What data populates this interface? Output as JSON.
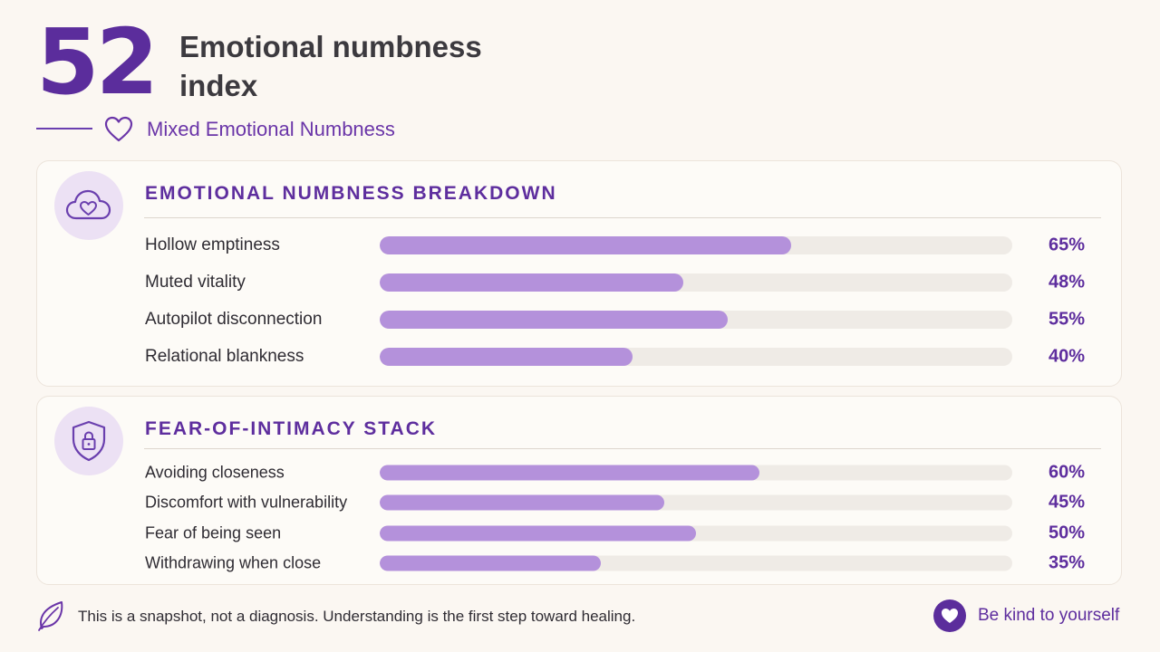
{
  "header": {
    "score": "52",
    "title": "Emotional numbness index",
    "category": "Mixed Emotional Numbness",
    "category_icon": "heart-outline-icon"
  },
  "sections": [
    {
      "heading": "EMOTIONAL NUMBNESS BREAKDOWN",
      "icon": "cloud-heart-icon",
      "rows": [
        {
          "label": "Hollow emptiness",
          "value": 65,
          "display": "65%"
        },
        {
          "label": "Muted vitality",
          "value": 48,
          "display": "48%"
        },
        {
          "label": "Autopilot disconnection",
          "value": 55,
          "display": "55%"
        },
        {
          "label": "Relational blankness",
          "value": 40,
          "display": "40%"
        }
      ]
    },
    {
      "heading": "FEAR-OF-INTIMACY STACK",
      "icon": "shield-lock-icon",
      "rows": [
        {
          "label": "Avoiding closeness",
          "value": 60,
          "display": "60%"
        },
        {
          "label": "Discomfort with vulnerability",
          "value": 45,
          "display": "45%"
        },
        {
          "label": "Fear of being seen",
          "value": 50,
          "display": "50%"
        },
        {
          "label": "Withdrawing when close",
          "value": 35,
          "display": "35%"
        }
      ]
    }
  ],
  "footer": {
    "note": "This is a snapshot, not a diagnosis. Understanding is the first step toward healing.",
    "note_icon": "leaf-icon",
    "kind_label": "Be kind to yourself",
    "kind_icon": "heart-icon"
  },
  "colors": {
    "accent": "#5b2d9c",
    "bar_fill": "#b491db",
    "bar_track": "#efebe6",
    "background": "#fbf7f2"
  }
}
